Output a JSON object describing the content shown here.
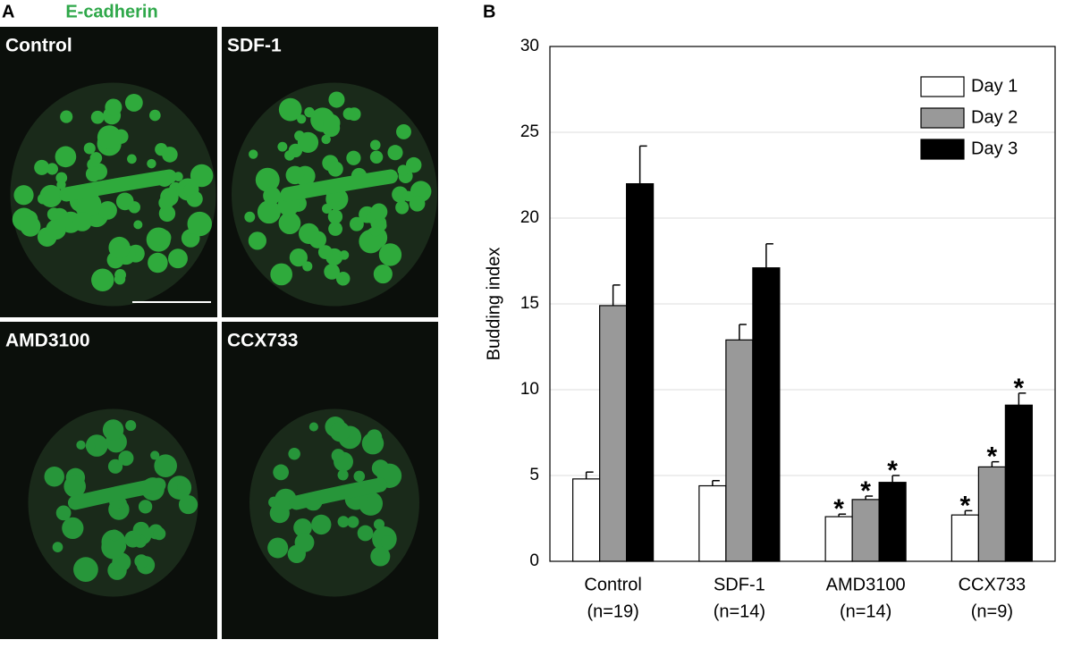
{
  "panel_a": {
    "label": "A",
    "title": "E-cadherin",
    "images": [
      "Control",
      "SDF-1",
      "AMD3100",
      "CCX733"
    ]
  },
  "chart_data": {
    "type": "bar",
    "panel_label": "B",
    "ylabel": "Budding index",
    "categories": [
      "Control",
      "SDF-1",
      "AMD3100",
      "CCX733"
    ],
    "sample_sizes": [
      "(n=19)",
      "(n=14)",
      "(n=14)",
      "(n=9)"
    ],
    "series": [
      {
        "name": "Day 1",
        "color": "#ffffff",
        "values": [
          4.8,
          4.4,
          2.6,
          2.7
        ],
        "errors": [
          0.4,
          0.3,
          0.15,
          0.25
        ],
        "markers": [
          null,
          null,
          "*",
          "*"
        ]
      },
      {
        "name": "Day 2",
        "color": "#999999",
        "values": [
          14.9,
          12.9,
          3.6,
          5.5
        ],
        "errors": [
          1.2,
          0.9,
          0.2,
          0.3
        ],
        "markers": [
          null,
          null,
          "*",
          "*"
        ]
      },
      {
        "name": "Day 3",
        "color": "#000000",
        "values": [
          22.0,
          17.1,
          4.6,
          9.1
        ],
        "errors": [
          2.2,
          1.4,
          0.4,
          0.7
        ],
        "markers": [
          null,
          null,
          "*",
          "*"
        ]
      }
    ],
    "ylim": [
      0,
      30
    ],
    "yticks": [
      0,
      5,
      10,
      15,
      20,
      25,
      30
    ],
    "grid": true,
    "legend": "top-right"
  }
}
